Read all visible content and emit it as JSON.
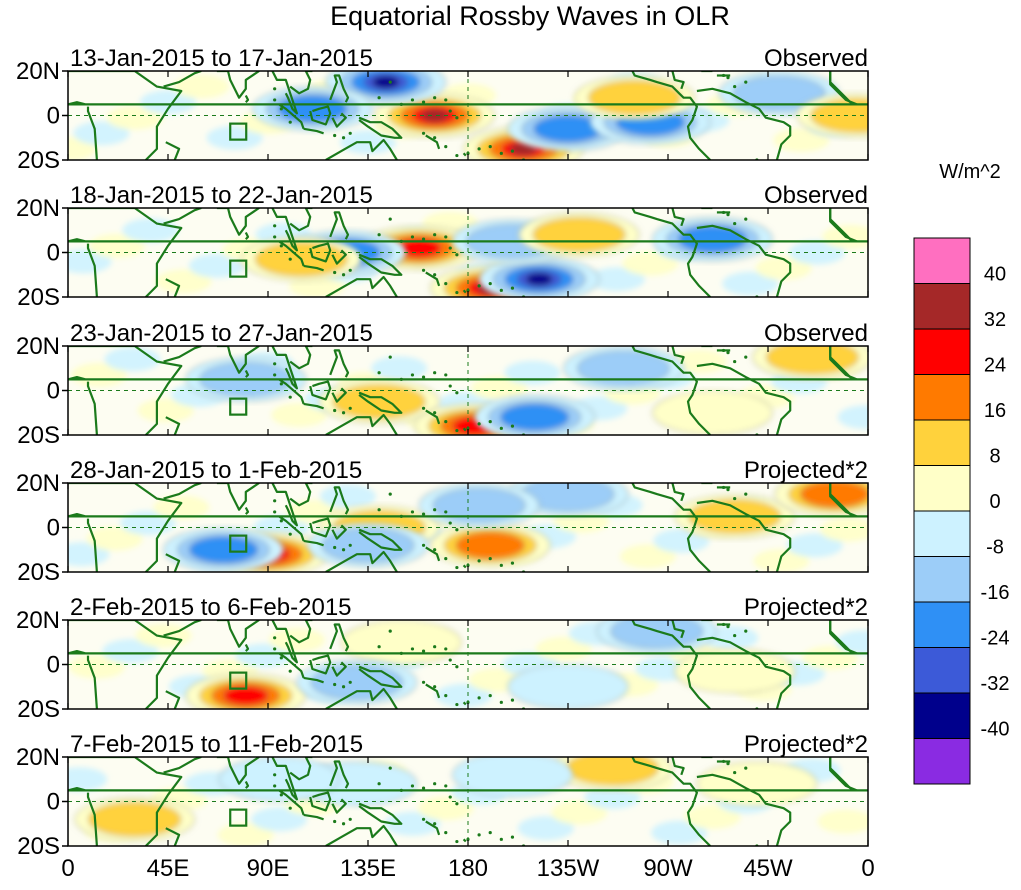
{
  "chart_data": {
    "type": "heatmap",
    "title": "Equatorial Rossby Waves in OLR",
    "units": "W/m^2",
    "colorbar": {
      "levels": [
        40,
        32,
        24,
        16,
        8,
        0,
        -8,
        -16,
        -24,
        -32,
        -40
      ],
      "colors": [
        "#ff6fc0",
        "#a52828",
        "#ff0000",
        "#ff7a00",
        "#ffd23c",
        "#ffffc8",
        "#cdf2ff",
        "#9ccdf8",
        "#2f90f5",
        "#3c5ad8",
        "#00008c",
        "#8a2be2"
      ]
    },
    "x_ticks": [
      "0",
      "45E",
      "90E",
      "135E",
      "180",
      "135W",
      "90W",
      "45W",
      "0"
    ],
    "y_ticks": [
      "20N",
      "0",
      "20S"
    ],
    "panels": [
      {
        "dates": "13-Jan-2015 to 17-Jan-2015",
        "type": "Observed"
      },
      {
        "dates": "18-Jan-2015 to 22-Jan-2015",
        "type": "Observed"
      },
      {
        "dates": "23-Jan-2015 to 27-Jan-2015",
        "type": "Observed"
      },
      {
        "dates": "28-Jan-2015 to 1-Feb-2015",
        "type": "Projected*2"
      },
      {
        "dates": "2-Feb-2015 to 6-Feb-2015",
        "type": "Projected*2"
      },
      {
        "dates": "7-Feb-2015 to 11-Feb-2015",
        "type": "Projected*2"
      }
    ],
    "features": [
      [
        {
          "lon": 165,
          "lat": 0,
          "value": 36,
          "name": "anom-pos-dateline"
        },
        {
          "lon": 205,
          "lat": -15,
          "value": 36,
          "name": "anom-pos-south"
        },
        {
          "lon": 143,
          "lat": 15,
          "value": -36,
          "name": "anom-neg-philippines"
        },
        {
          "lon": 110,
          "lat": 3,
          "value": -20,
          "name": "anom-neg-maritime"
        },
        {
          "lon": 225,
          "lat": -6,
          "value": -20,
          "name": "anom-neg-east"
        },
        {
          "lon": 262,
          "lat": -3,
          "value": -20,
          "name": "anom-neg-eastpac"
        },
        {
          "lon": 320,
          "lat": 10,
          "value": -14,
          "name": "anom-neg-atl"
        },
        {
          "lon": 255,
          "lat": 8,
          "value": 12,
          "name": "anom-pos-eastpac"
        },
        {
          "lon": 355,
          "lat": 0,
          "value": 12,
          "name": "anom-pos-africa"
        }
      ],
      [
        {
          "lon": 158,
          "lat": 2,
          "value": 34,
          "name": "anom-pos-dateline"
        },
        {
          "lon": 190,
          "lat": -16,
          "value": 36,
          "name": "anom-pos-south"
        },
        {
          "lon": 212,
          "lat": -12,
          "value": -36,
          "name": "anom-neg-south"
        },
        {
          "lon": 125,
          "lat": 0,
          "value": -22,
          "name": "anom-neg-maritime"
        },
        {
          "lon": 200,
          "lat": 5,
          "value": -16,
          "name": "anom-neg-central"
        },
        {
          "lon": 290,
          "lat": 6,
          "value": -20,
          "name": "anom-neg-americas"
        },
        {
          "lon": 105,
          "lat": -3,
          "value": 12,
          "name": "anom-pos-io"
        },
        {
          "lon": 230,
          "lat": 8,
          "value": 12,
          "name": "anom-pos-eastpac"
        }
      ],
      [
        {
          "lon": 140,
          "lat": -5,
          "value": 16,
          "name": "anom-pos-maritime"
        },
        {
          "lon": 183,
          "lat": -16,
          "value": 30,
          "name": "anom-pos-south"
        },
        {
          "lon": 210,
          "lat": -12,
          "value": -22,
          "name": "anom-neg-south"
        },
        {
          "lon": 250,
          "lat": 10,
          "value": -12,
          "name": "anom-neg-eastpac"
        },
        {
          "lon": 335,
          "lat": 15,
          "value": 12,
          "name": "anom-pos-atl"
        },
        {
          "lon": 290,
          "lat": -10,
          "value": 10,
          "name": "anom-pos-samerica"
        },
        {
          "lon": 80,
          "lat": 5,
          "value": -12,
          "name": "anom-neg-io"
        }
      ],
      [
        {
          "lon": 90,
          "lat": -12,
          "value": 34,
          "name": "anom-pos-io"
        },
        {
          "lon": 190,
          "lat": -8,
          "value": 22,
          "name": "anom-pos-southpac"
        },
        {
          "lon": 140,
          "lat": 0,
          "value": 16,
          "name": "anom-pos-maritime"
        },
        {
          "lon": 300,
          "lat": 5,
          "value": 18,
          "name": "anom-pos-samerica"
        },
        {
          "lon": 345,
          "lat": 15,
          "value": 20,
          "name": "anom-pos-atl"
        },
        {
          "lon": 70,
          "lat": -10,
          "value": -20,
          "name": "anom-neg-io"
        },
        {
          "lon": 135,
          "lat": -8,
          "value": -16,
          "name": "anom-neg-maritime"
        },
        {
          "lon": 225,
          "lat": 15,
          "value": -18,
          "name": "anom-neg-northpac"
        },
        {
          "lon": 185,
          "lat": 10,
          "value": -14,
          "name": "anom-neg-central"
        }
      ],
      [
        {
          "lon": 80,
          "lat": -14,
          "value": 32,
          "name": "anom-pos-io"
        },
        {
          "lon": 300,
          "lat": -3,
          "value": 10,
          "name": "anom-pos-samerica"
        },
        {
          "lon": 150,
          "lat": 10,
          "value": 8,
          "name": "anom-pos-westpac"
        },
        {
          "lon": 130,
          "lat": -8,
          "value": -14,
          "name": "anom-neg-maritime"
        },
        {
          "lon": 265,
          "lat": 15,
          "value": -12,
          "name": "anom-neg-eastpac"
        },
        {
          "lon": 225,
          "lat": -10,
          "value": -10,
          "name": "anom-neg-southpac"
        }
      ],
      [
        {
          "lon": 30,
          "lat": -8,
          "value": 14,
          "name": "anom-pos-africa"
        },
        {
          "lon": 245,
          "lat": 15,
          "value": 12,
          "name": "anom-pos-eastpac"
        },
        {
          "lon": 310,
          "lat": 8,
          "value": 10,
          "name": "anom-pos-americas"
        },
        {
          "lon": 130,
          "lat": 8,
          "value": -10,
          "name": "anom-neg-westpac"
        },
        {
          "lon": 95,
          "lat": 10,
          "value": -10,
          "name": "anom-neg-io"
        },
        {
          "lon": 200,
          "lat": 12,
          "value": -10,
          "name": "anom-neg-central"
        }
      ]
    ]
  }
}
